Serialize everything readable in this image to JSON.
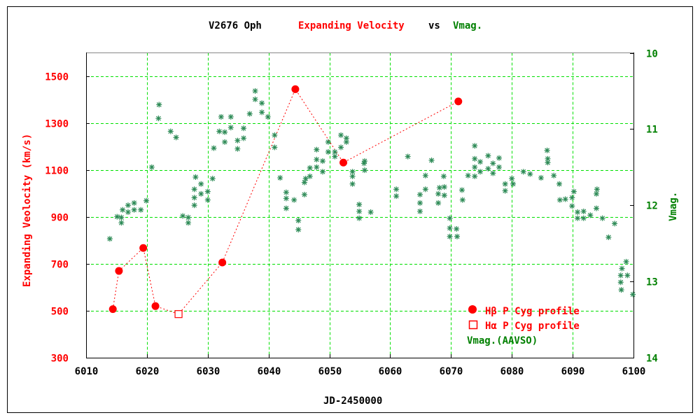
{
  "chart_data": {
    "type": "scatter",
    "title": {
      "star": "V2676 Oph",
      "left_quantity": "Expanding Velocity",
      "vs": "vs",
      "right_quantity": "Vmag."
    },
    "xlabel": "JD-2450000",
    "ylabel_left": "Expanding Veolocity (km/s)",
    "ylabel_right": "Vmag.",
    "xlim": [
      6010,
      6100
    ],
    "ylim_left": [
      300,
      1600
    ],
    "ylim_right": [
      10,
      14
    ],
    "right_axis_inverted": true,
    "grid": true,
    "x_ticks": [
      "6010",
      "6020",
      "6030",
      "6040",
      "6050",
      "6060",
      "6070",
      "6080",
      "6090",
      "6100"
    ],
    "y_left_ticks": [
      "300",
      "500",
      "700",
      "900",
      "1100",
      "1300",
      "1500"
    ],
    "y_right_ticks": [
      "10",
      "11",
      "12",
      "13",
      "14"
    ],
    "legend_placement": "bottom-right",
    "colors": {
      "velocity": "#ff0000",
      "vmag": "#2e8b57",
      "vmag_text": "#008000",
      "grid": "#00e000"
    },
    "series": [
      {
        "name": "Hβ P Cyg profile",
        "marker": "filled-circle",
        "axis": "left",
        "x": [
          6014.4,
          6015.4,
          6019.4,
          6021.4,
          6032.4,
          6044.4,
          6052.3,
          6071.2
        ],
        "y": [
          507,
          670,
          768,
          520,
          706,
          1445,
          1132,
          1393
        ]
      },
      {
        "name": "Hα P Cyg profile",
        "marker": "open-square",
        "axis": "left",
        "x": [
          6025.2
        ],
        "y": [
          486
        ]
      },
      {
        "name": "Vmag.(AAVSO)",
        "marker": "asterisk",
        "axis": "right",
        "x": [
          6013.9,
          6015.1,
          6015.8,
          6015.8,
          6016.0,
          6016.9,
          6016.9,
          6017.9,
          6017.9,
          6019.0,
          6019.9,
          6020.8,
          6021.9,
          6022.0,
          6023.9,
          6024.8,
          6025.9,
          6026.8,
          6026.8,
          6027.8,
          6027.8,
          6027.8,
          6028.0,
          6028.9,
          6028.9,
          6030.0,
          6030.0,
          6030.8,
          6031.0,
          6031.9,
          6032.2,
          6032.8,
          6032.8,
          6033.8,
          6033.8,
          6034.9,
          6034.9,
          6035.9,
          6035.9,
          6036.9,
          6037.8,
          6037.8,
          6038.9,
          6038.9,
          6039.9,
          6041.0,
          6041.0,
          6041.9,
          6042.9,
          6042.9,
          6042.9,
          6044.2,
          6044.9,
          6044.9,
          6045.9,
          6045.9,
          6046.1,
          6046.8,
          6046.8,
          6047.9,
          6047.9,
          6047.9,
          6048.9,
          6048.9,
          6049.8,
          6049.8,
          6050.9,
          6050.9,
          6051.9,
          6051.9,
          6052.8,
          6052.8,
          6053.8,
          6053.8,
          6053.8,
          6054.9,
          6054.9,
          6054.9,
          6055.7,
          6055.8,
          6055.8,
          6056.8,
          6061.0,
          6061.0,
          6062.9,
          6064.9,
          6064.9,
          6064.9,
          6065.8,
          6065.8,
          6066.8,
          6067.9,
          6067.9,
          6068.1,
          6068.8,
          6068.9,
          6068.9,
          6069.8,
          6069.8,
          6069.8,
          6070.9,
          6071.0,
          6071.8,
          6071.9,
          6072.8,
          6073.9,
          6073.9,
          6073.9,
          6073.9,
          6074.8,
          6074.8,
          6076.1,
          6076.1,
          6076.9,
          6076.9,
          6077.9,
          6077.9,
          6078.9,
          6078.9,
          6080.0,
          6080.2,
          6081.9,
          6083.0,
          6084.8,
          6085.8,
          6085.9,
          6085.9,
          6086.9,
          6087.8,
          6087.9,
          6088.8,
          6089.9,
          6089.9,
          6090.2,
          6090.8,
          6090.8,
          6091.8,
          6091.8,
          6092.9,
          6093.9,
          6094.0,
          6093.9,
          6094.9,
          6096.9,
          6095.9,
          6098.8,
          6098.1,
          6097.9,
          6099.0,
          6097.9,
          6098.0,
          6099.9
        ],
        "y": [
          12.44,
          12.15,
          12.16,
          12.23,
          12.06,
          12.0,
          12.09,
          11.97,
          12.06,
          12.06,
          11.94,
          11.5,
          10.86,
          10.68,
          11.03,
          11.11,
          12.14,
          12.16,
          12.23,
          11.79,
          11.9,
          12.0,
          11.63,
          11.72,
          11.85,
          11.82,
          11.93,
          11.65,
          11.25,
          11.03,
          10.84,
          11.04,
          11.17,
          10.84,
          10.98,
          11.15,
          11.26,
          10.99,
          11.12,
          10.8,
          10.5,
          10.61,
          10.66,
          10.78,
          10.84,
          11.08,
          11.24,
          11.64,
          11.83,
          11.91,
          12.04,
          11.93,
          12.2,
          12.32,
          11.7,
          11.86,
          11.65,
          11.51,
          11.62,
          11.27,
          11.4,
          11.5,
          11.42,
          11.56,
          11.17,
          11.3,
          11.3,
          11.36,
          11.08,
          11.24,
          11.12,
          11.17,
          11.56,
          11.62,
          11.72,
          11.99,
          12.08,
          12.17,
          11.45,
          11.42,
          11.54,
          12.09,
          11.79,
          11.88,
          11.36,
          11.86,
          11.97,
          12.08,
          11.61,
          11.79,
          11.41,
          11.85,
          11.97,
          11.77,
          11.62,
          11.76,
          11.87,
          12.17,
          12.3,
          12.41,
          12.31,
          12.41,
          11.8,
          11.93,
          11.61,
          11.22,
          11.39,
          11.5,
          11.62,
          11.43,
          11.56,
          11.35,
          11.52,
          11.45,
          11.58,
          11.38,
          11.5,
          11.72,
          11.81,
          11.65,
          11.72,
          11.56,
          11.59,
          11.64,
          11.28,
          11.39,
          11.44,
          11.61,
          11.72,
          11.93,
          11.92,
          11.9,
          12.01,
          11.82,
          12.09,
          12.17,
          12.08,
          12.17,
          12.13,
          11.85,
          11.79,
          12.04,
          12.17,
          12.24,
          12.42,
          12.74,
          12.83,
          12.92,
          12.92,
          13.01,
          13.11,
          13.17
        ]
      }
    ]
  }
}
